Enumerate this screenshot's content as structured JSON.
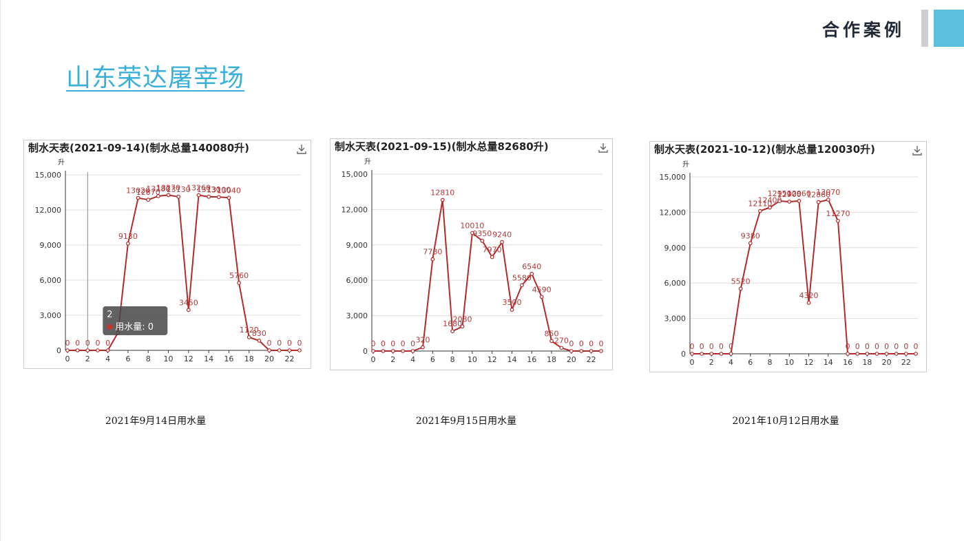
{
  "header": {
    "section_title": "合作案例"
  },
  "page": {
    "title": "山东荣达屠宰场"
  },
  "captions": [
    "2021年9月14日用水量",
    "2021年9月15日用水量",
    "2021年10月12日用水量"
  ],
  "colors": {
    "series": "#b22a2a",
    "accent": "#5bc0de",
    "title": "#3ab0d8"
  },
  "chart_data": [
    {
      "type": "line",
      "title": "制水天表(2021-09-14)(制水总量140080升)",
      "ylabel": "升",
      "ylim": [
        0,
        15000
      ],
      "y_ticks": [
        "0",
        "3,000",
        "6,000",
        "9,000",
        "12,000",
        "15,000"
      ],
      "x": [
        0,
        1,
        2,
        3,
        4,
        5,
        6,
        7,
        8,
        9,
        10,
        11,
        12,
        13,
        14,
        15,
        16,
        17,
        18,
        19,
        20,
        21,
        22,
        23
      ],
      "x_ticks": [
        "0",
        "2",
        "4",
        "6",
        "8",
        "10",
        "12",
        "14",
        "16",
        "18",
        "20",
        "22"
      ],
      "values": [
        0,
        0,
        0,
        0,
        0,
        1500,
        9130,
        13020,
        12870,
        13180,
        13270,
        13130,
        3450,
        13260,
        13130,
        13100,
        13040,
        5760,
        1120,
        830,
        0,
        0,
        0,
        0
      ],
      "labels": [
        "0",
        "0",
        "0",
        "0",
        "0",
        "",
        "9130",
        "13020",
        "12870",
        "13180",
        "13270",
        "13130",
        "3450",
        "13260",
        "13130",
        "13100",
        "13040",
        "5760",
        "1120",
        "830",
        "0",
        "0",
        "0",
        "0"
      ],
      "grid": true,
      "tooltip": {
        "title": "2",
        "text": "用水量: 0",
        "x": 2
      },
      "download_icon": "download-icon"
    },
    {
      "type": "line",
      "title": "制水天表(2021-09-15)(制水总量82680升)",
      "ylabel": "升",
      "ylim": [
        0,
        15000
      ],
      "y_ticks": [
        "0",
        "3,000",
        "6,000",
        "9,000",
        "12,000",
        "15,000"
      ],
      "x": [
        0,
        1,
        2,
        3,
        4,
        5,
        6,
        7,
        8,
        9,
        10,
        11,
        12,
        13,
        14,
        15,
        16,
        17,
        18,
        19,
        20,
        21,
        22,
        23
      ],
      "x_ticks": [
        "0",
        "2",
        "4",
        "6",
        "8",
        "10",
        "12",
        "14",
        "16",
        "18",
        "20",
        "22"
      ],
      "values": [
        0,
        0,
        0,
        0,
        0,
        320,
        7780,
        12810,
        1680,
        2080,
        10010,
        9350,
        7970,
        9240,
        3500,
        5580,
        6540,
        4590,
        850,
        270,
        0,
        0,
        0,
        0
      ],
      "labels": [
        "0",
        "0",
        "0",
        "0",
        "0",
        "320",
        "7780",
        "12810",
        "1680",
        "2080",
        "10010",
        "9350",
        "7970",
        "9240",
        "3500",
        "5580",
        "6540",
        "4590",
        "850",
        "270",
        "0",
        "0",
        "0",
        "0"
      ],
      "grid": true,
      "download_icon": "download-icon"
    },
    {
      "type": "line",
      "title": "制水天表(2021-10-12)(制水总量120030升)",
      "ylabel": "升",
      "ylim": [
        0,
        15000
      ],
      "y_ticks": [
        "0",
        "3,000",
        "6,000",
        "9,000",
        "12,000",
        "15,000"
      ],
      "x": [
        0,
        1,
        2,
        3,
        4,
        5,
        6,
        7,
        8,
        9,
        10,
        11,
        12,
        13,
        14,
        15,
        16,
        17,
        18,
        19,
        20,
        21,
        22,
        23
      ],
      "x_ticks": [
        "0",
        "2",
        "4",
        "6",
        "8",
        "10",
        "12",
        "14",
        "16",
        "18",
        "20",
        "22"
      ],
      "values": [
        0,
        0,
        0,
        0,
        0,
        5520,
        9380,
        12110,
        12400,
        12950,
        12900,
        12960,
        4320,
        12860,
        13070,
        11270,
        0,
        0,
        0,
        0,
        0,
        0,
        0,
        0
      ],
      "labels": [
        "0",
        "0",
        "0",
        "0",
        "0",
        "5520",
        "9380",
        "12110",
        "12400",
        "12950",
        "12900",
        "12960",
        "4320",
        "12860",
        "13070",
        "11270",
        "0",
        "0",
        "0",
        "0",
        "0",
        "0",
        "0",
        "0"
      ],
      "grid": true,
      "download_icon": "download-icon"
    }
  ]
}
